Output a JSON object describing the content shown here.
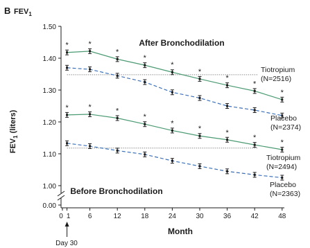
{
  "panel_letter": "B",
  "chart_title_base": "FEV",
  "chart_title_sub": "1",
  "ylabel_base": "FEV",
  "ylabel_sub": "1",
  "ylabel_rest": " (liters)",
  "xlabel": "Month",
  "day30_label": "Day 30",
  "after_label": "After Bronchodilation",
  "before_label": "Before Bronchodilation",
  "star": "*",
  "colors": {
    "tiotropium": "#4a9a72",
    "placebo": "#3a70b8",
    "axis": "#1a1a1a",
    "reference": "#8a8a8a"
  },
  "chart_data": {
    "type": "line",
    "x_ticks": [
      "0",
      "1",
      "6",
      "12",
      "18",
      "24",
      "30",
      "36",
      "42",
      "48"
    ],
    "y_ticks": [
      "0.00",
      "1.00",
      "1.10",
      "1.20",
      "1.30",
      "1.40",
      "1.50"
    ],
    "ylim": [
      1.0,
      1.5
    ],
    "y_axis_break": true,
    "reference_lines": [
      1.348,
      1.118
    ],
    "series": [
      {
        "name": "Tiotropium (N=2516)",
        "label_lines": [
          "Tiotropium",
          "(N=2516)"
        ],
        "group": "after",
        "color_key": "tiotropium",
        "dashed": false,
        "x": [
          1,
          6,
          12,
          18,
          24,
          30,
          36,
          42,
          48
        ],
        "y": [
          1.418,
          1.422,
          1.397,
          1.378,
          1.356,
          1.335,
          1.315,
          1.297,
          1.27
        ],
        "stars": [
          1,
          6,
          12,
          18,
          24,
          30,
          36,
          42,
          48
        ]
      },
      {
        "name": "Placebo (N=2374)",
        "label_lines": [
          "Placebo",
          "(N=2374)"
        ],
        "group": "after",
        "color_key": "placebo",
        "dashed": true,
        "x": [
          1,
          6,
          12,
          18,
          24,
          30,
          36,
          42,
          48
        ],
        "y": [
          1.37,
          1.365,
          1.345,
          1.325,
          1.293,
          1.275,
          1.25,
          1.237,
          1.22
        ],
        "stars": []
      },
      {
        "name": "Tiotropium (N=2494)",
        "label_lines": [
          "Tiotropium",
          "(N=2494)"
        ],
        "group": "before",
        "color_key": "tiotropium",
        "dashed": false,
        "x": [
          1,
          6,
          12,
          18,
          24,
          30,
          36,
          42,
          48
        ],
        "y": [
          1.222,
          1.224,
          1.212,
          1.193,
          1.173,
          1.156,
          1.144,
          1.128,
          1.113
        ],
        "stars": [
          1,
          6,
          12,
          18,
          24,
          30,
          36,
          42,
          48
        ]
      },
      {
        "name": "Placebo (N=2363)",
        "label_lines": [
          "Placebo",
          "(N=2363)"
        ],
        "group": "before",
        "color_key": "placebo",
        "dashed": true,
        "x": [
          1,
          6,
          12,
          18,
          24,
          30,
          36,
          42,
          48
        ],
        "y": [
          1.133,
          1.124,
          1.11,
          1.098,
          1.078,
          1.061,
          1.045,
          1.034,
          1.025
        ],
        "stars": []
      }
    ]
  }
}
